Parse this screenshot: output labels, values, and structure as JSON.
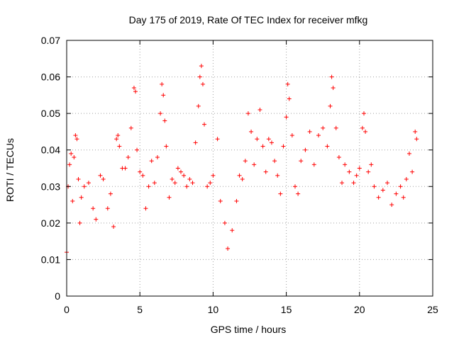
{
  "chart_data": {
    "type": "scatter",
    "title": "Day 175 of 2019, Rate Of TEC Index for receiver mfkg",
    "xlabel": "GPS time / hours",
    "ylabel": "ROTI / TECUs",
    "xlim": [
      0,
      25
    ],
    "ylim": [
      0,
      0.07
    ],
    "xticks": [
      0,
      5,
      10,
      15,
      20,
      25
    ],
    "xtick_labels": [
      "0",
      "5",
      "10",
      "15",
      "20",
      "25"
    ],
    "yticks": [
      0,
      0.01,
      0.02,
      0.03,
      0.04,
      0.05,
      0.06,
      0.07
    ],
    "ytick_labels": [
      "0",
      "0.01",
      "0.02",
      "0.03",
      "0.04",
      "0.05",
      "0.06",
      "0.07"
    ],
    "grid": true,
    "marker": "plus",
    "color": "#ff0000",
    "series": [
      {
        "points": [
          [
            0.0,
            0.012
          ],
          [
            0.1,
            0.03
          ],
          [
            0.2,
            0.036
          ],
          [
            0.3,
            0.039
          ],
          [
            0.4,
            0.026
          ],
          [
            0.5,
            0.038
          ],
          [
            0.6,
            0.044
          ],
          [
            0.7,
            0.043
          ],
          [
            0.8,
            0.032
          ],
          [
            0.9,
            0.02
          ],
          [
            1.0,
            0.027
          ],
          [
            1.2,
            0.03
          ],
          [
            1.5,
            0.031
          ],
          [
            1.8,
            0.024
          ],
          [
            2.0,
            0.021
          ],
          [
            2.3,
            0.033
          ],
          [
            2.5,
            0.032
          ],
          [
            2.8,
            0.024
          ],
          [
            3.0,
            0.028
          ],
          [
            3.2,
            0.019
          ],
          [
            3.4,
            0.043
          ],
          [
            3.5,
            0.044
          ],
          [
            3.6,
            0.041
          ],
          [
            3.8,
            0.035
          ],
          [
            4.0,
            0.035
          ],
          [
            4.2,
            0.038
          ],
          [
            4.4,
            0.046
          ],
          [
            4.6,
            0.057
          ],
          [
            4.7,
            0.056
          ],
          [
            4.8,
            0.04
          ],
          [
            5.0,
            0.034
          ],
          [
            5.2,
            0.033
          ],
          [
            5.4,
            0.024
          ],
          [
            5.6,
            0.03
          ],
          [
            5.8,
            0.037
          ],
          [
            6.0,
            0.031
          ],
          [
            6.2,
            0.038
          ],
          [
            6.4,
            0.05
          ],
          [
            6.5,
            0.058
          ],
          [
            6.6,
            0.055
          ],
          [
            6.7,
            0.048
          ],
          [
            6.8,
            0.041
          ],
          [
            7.0,
            0.027
          ],
          [
            7.2,
            0.032
          ],
          [
            7.4,
            0.031
          ],
          [
            7.6,
            0.035
          ],
          [
            7.8,
            0.034
          ],
          [
            8.0,
            0.033
          ],
          [
            8.2,
            0.03
          ],
          [
            8.4,
            0.032
          ],
          [
            8.6,
            0.031
          ],
          [
            8.8,
            0.042
          ],
          [
            9.0,
            0.052
          ],
          [
            9.1,
            0.06
          ],
          [
            9.2,
            0.063
          ],
          [
            9.3,
            0.058
          ],
          [
            9.4,
            0.047
          ],
          [
            9.6,
            0.03
          ],
          [
            9.8,
            0.031
          ],
          [
            10.0,
            0.033
          ],
          [
            10.3,
            0.043
          ],
          [
            10.5,
            0.026
          ],
          [
            10.8,
            0.02
          ],
          [
            11.0,
            0.013
          ],
          [
            11.3,
            0.018
          ],
          [
            11.6,
            0.026
          ],
          [
            11.8,
            0.033
          ],
          [
            12.0,
            0.032
          ],
          [
            12.2,
            0.037
          ],
          [
            12.4,
            0.05
          ],
          [
            12.6,
            0.045
          ],
          [
            12.8,
            0.036
          ],
          [
            13.0,
            0.043
          ],
          [
            13.2,
            0.051
          ],
          [
            13.4,
            0.041
          ],
          [
            13.6,
            0.034
          ],
          [
            13.8,
            0.043
          ],
          [
            14.0,
            0.042
          ],
          [
            14.2,
            0.037
          ],
          [
            14.4,
            0.033
          ],
          [
            14.6,
            0.028
          ],
          [
            14.8,
            0.041
          ],
          [
            15.0,
            0.049
          ],
          [
            15.1,
            0.058
          ],
          [
            15.2,
            0.054
          ],
          [
            15.4,
            0.044
          ],
          [
            15.6,
            0.03
          ],
          [
            15.8,
            0.028
          ],
          [
            16.0,
            0.037
          ],
          [
            16.3,
            0.04
          ],
          [
            16.6,
            0.045
          ],
          [
            16.9,
            0.036
          ],
          [
            17.2,
            0.044
          ],
          [
            17.5,
            0.046
          ],
          [
            17.8,
            0.041
          ],
          [
            18.0,
            0.052
          ],
          [
            18.1,
            0.06
          ],
          [
            18.2,
            0.057
          ],
          [
            18.4,
            0.046
          ],
          [
            18.6,
            0.038
          ],
          [
            18.8,
            0.031
          ],
          [
            19.0,
            0.036
          ],
          [
            19.3,
            0.034
          ],
          [
            19.6,
            0.031
          ],
          [
            19.8,
            0.033
          ],
          [
            20.0,
            0.035
          ],
          [
            20.2,
            0.046
          ],
          [
            20.3,
            0.05
          ],
          [
            20.4,
            0.045
          ],
          [
            20.6,
            0.034
          ],
          [
            20.8,
            0.036
          ],
          [
            21.0,
            0.03
          ],
          [
            21.3,
            0.027
          ],
          [
            21.6,
            0.029
          ],
          [
            21.9,
            0.031
          ],
          [
            22.2,
            0.025
          ],
          [
            22.5,
            0.028
          ],
          [
            22.8,
            0.03
          ],
          [
            23.0,
            0.027
          ],
          [
            23.2,
            0.032
          ],
          [
            23.4,
            0.039
          ],
          [
            23.6,
            0.034
          ],
          [
            23.8,
            0.045
          ],
          [
            23.9,
            0.043
          ]
        ]
      }
    ]
  }
}
